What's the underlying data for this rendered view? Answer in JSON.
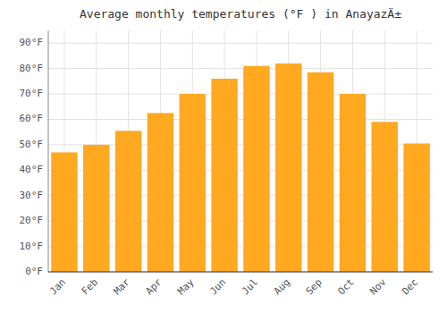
{
  "chart_data": {
    "type": "bar",
    "title": "Average monthly temperatures (°F ) in AnayazÄ±",
    "categories": [
      "Jan",
      "Feb",
      "Mar",
      "Apr",
      "May",
      "Jun",
      "Jul",
      "Aug",
      "Sep",
      "Oct",
      "Nov",
      "Dec"
    ],
    "values": [
      47,
      50,
      55.5,
      62.5,
      70,
      76,
      81,
      82,
      78.5,
      70,
      59,
      50.5
    ],
    "color": "#FFA820",
    "ylim": [
      0,
      95
    ],
    "yticks": [
      {
        "value": 0,
        "label": "0°F"
      },
      {
        "value": 10,
        "label": "10°F"
      },
      {
        "value": 20,
        "label": "20°F"
      },
      {
        "value": 30,
        "label": "30°F"
      },
      {
        "value": 40,
        "label": "40°F"
      },
      {
        "value": 50,
        "label": "50°F"
      },
      {
        "value": 60,
        "label": "60°F"
      },
      {
        "value": 70,
        "label": "70°F"
      },
      {
        "value": 80,
        "label": "80°F"
      },
      {
        "value": 90,
        "label": "90°F"
      }
    ],
    "grid": true
  }
}
